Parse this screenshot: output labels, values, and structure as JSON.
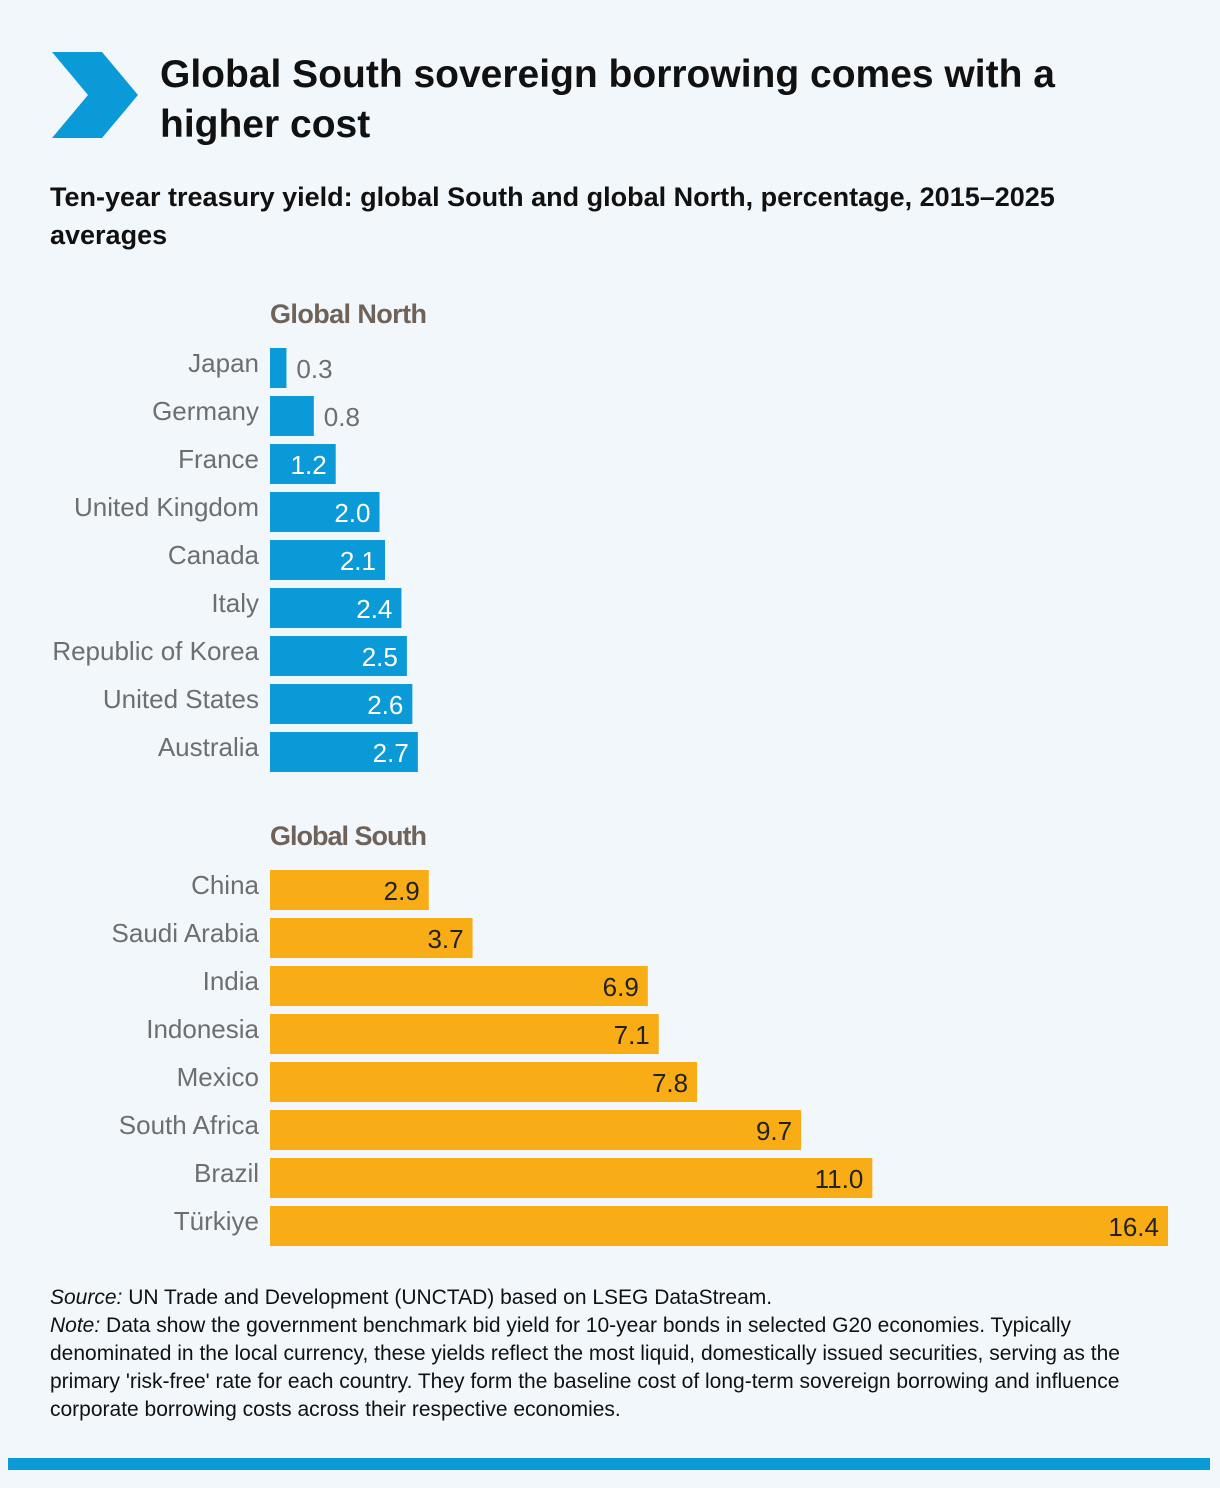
{
  "title": "Global South sovereign borrowing comes with a higher cost",
  "subtitle": "Ten-year treasury yield: global South and global North, percentage, 2015–2025 averages",
  "chart_data": {
    "type": "bar",
    "orientation": "horizontal",
    "title": "Global South sovereign borrowing comes with a higher cost",
    "subtitle": "Ten-year treasury yield: global South and global North, percentage, 2015–2025 averages",
    "xlim": [
      0,
      16.4
    ],
    "grid": false,
    "groups": [
      {
        "name": "Global North",
        "color": "#0a9ad7",
        "categories": [
          "Japan",
          "Germany",
          "France",
          "United Kingdom",
          "Canada",
          "Italy",
          "Republic of Korea",
          "United States",
          "Australia"
        ],
        "values": [
          0.3,
          0.8,
          1.2,
          2.0,
          2.1,
          2.4,
          2.5,
          2.6,
          2.7
        ]
      },
      {
        "name": "Global South",
        "color": "#f8ad16",
        "categories": [
          "China",
          "Saudi Arabia",
          "India",
          "Indonesia",
          "Mexico",
          "South Africa",
          "Brazil",
          "Türkiye"
        ],
        "values": [
          2.9,
          3.7,
          6.9,
          7.1,
          7.8,
          9.7,
          11.0,
          16.4
        ]
      }
    ]
  },
  "source": {
    "label": "Source:",
    "text": " UN Trade and Development (UNCTAD) based on LSEG DataStream."
  },
  "note": {
    "label": "Note:",
    "text": " Data show the government benchmark bid yield for 10-year bonds in selected G20 economies. Typically denominated in the local currency, these yields reflect the most liquid, domestically issued securities, serving as the primary 'risk-free' rate for each country. They form the baseline cost of long-term sovereign borrowing and influence corporate borrowing costs across their respective economies."
  },
  "colors": {
    "accent": "#0a9ad7",
    "south": "#f8ad16",
    "group_heading": "#6e6259",
    "category_label": "#6e6e6e"
  },
  "icons": {
    "header": "chevron-right-icon"
  }
}
